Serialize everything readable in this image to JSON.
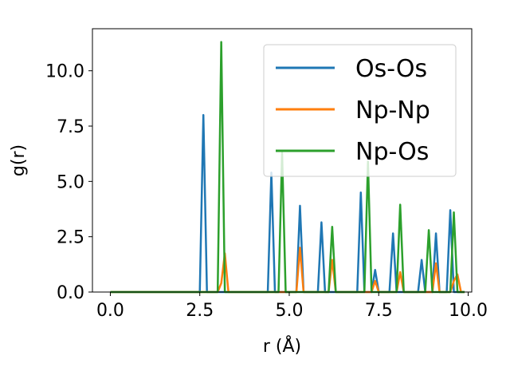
{
  "chart_data": {
    "type": "line",
    "xlabel": "r (Å)",
    "ylabel": "g(r)",
    "xlim": [
      -0.5,
      10.1
    ],
    "ylim": [
      0,
      11.9
    ],
    "xticks": [
      0.0,
      2.5,
      5.0,
      7.5,
      10.0
    ],
    "yticks": [
      0.0,
      2.5,
      5.0,
      7.5,
      10.0
    ],
    "xtick_labels": [
      "0.0",
      "2.5",
      "5.0",
      "7.5",
      "10.0"
    ],
    "ytick_labels": [
      "0.0",
      "2.5",
      "5.0",
      "7.5",
      "10.0"
    ],
    "grid": false,
    "legend_position": "top-right",
    "series": [
      {
        "name": "Os-Os",
        "color": "#1f77b4",
        "x": [
          0,
          2.5,
          2.6,
          2.7,
          4.4,
          4.5,
          4.6,
          5.2,
          5.3,
          5.4,
          5.8,
          5.9,
          6.0,
          6.9,
          7.0,
          7.1,
          7.3,
          7.4,
          7.5,
          7.8,
          7.9,
          8.0,
          8.6,
          8.7,
          8.8,
          9.0,
          9.1,
          9.2,
          9.4,
          9.5,
          9.6,
          9.9
        ],
        "y": [
          0,
          0,
          8.0,
          0,
          0,
          5.4,
          0,
          0,
          3.9,
          0,
          0,
          3.15,
          0,
          0,
          4.5,
          0,
          0,
          1.0,
          0,
          0,
          2.65,
          0,
          0,
          1.45,
          0,
          0,
          2.65,
          0,
          0,
          3.7,
          0,
          0
        ]
      },
      {
        "name": "Np-Np",
        "color": "#ff7f0e",
        "x": [
          0,
          3.0,
          3.1,
          3.2,
          3.3,
          5.2,
          5.3,
          5.4,
          6.1,
          6.2,
          6.3,
          7.3,
          7.4,
          7.5,
          8.0,
          8.1,
          8.2,
          9.0,
          9.1,
          9.2,
          9.5,
          9.6,
          9.7,
          9.8,
          9.9
        ],
        "y": [
          0,
          0,
          0.4,
          1.75,
          0,
          0,
          2.0,
          0,
          0,
          1.45,
          0,
          0,
          0.5,
          0,
          0,
          0.9,
          0,
          0,
          1.3,
          0,
          0,
          0.5,
          0.8,
          0,
          0
        ]
      },
      {
        "name": "Np-Os",
        "color": "#2ca02c",
        "x": [
          0,
          3.0,
          3.1,
          3.2,
          4.7,
          4.8,
          4.9,
          6.1,
          6.2,
          6.3,
          7.1,
          7.2,
          7.3,
          8.0,
          8.1,
          8.2,
          8.8,
          8.9,
          9.0,
          9.5,
          9.6,
          9.7,
          9.9
        ],
        "y": [
          0,
          0,
          11.3,
          0,
          0,
          6.3,
          0,
          0,
          2.95,
          0,
          0,
          5.9,
          0,
          0,
          3.95,
          0,
          0,
          2.8,
          0,
          0,
          3.6,
          0,
          0
        ]
      }
    ]
  }
}
